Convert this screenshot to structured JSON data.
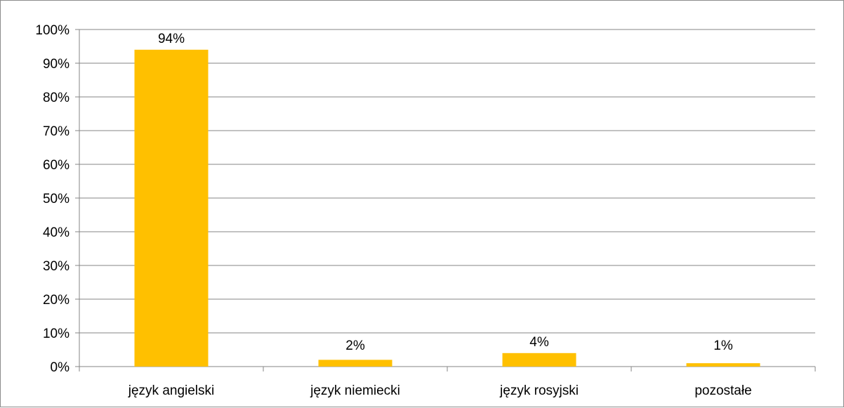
{
  "chart_data": {
    "type": "bar",
    "categories": [
      "język angielski",
      "język niemiecki",
      "język rosyjski",
      "pozostałe"
    ],
    "values": [
      94,
      2,
      4,
      1
    ],
    "data_labels": [
      "94%",
      "2%",
      "4%",
      "1%"
    ],
    "ylim": [
      0,
      100
    ],
    "yticks": [
      0,
      10,
      20,
      30,
      40,
      50,
      60,
      70,
      80,
      90,
      100
    ],
    "ytick_labels": [
      "0%",
      "10%",
      "20%",
      "30%",
      "40%",
      "50%",
      "60%",
      "70%",
      "80%",
      "90%",
      "100%"
    ],
    "grid": true,
    "legend": "none",
    "bar_color": "#FFC000",
    "grid_color": "#868686"
  }
}
